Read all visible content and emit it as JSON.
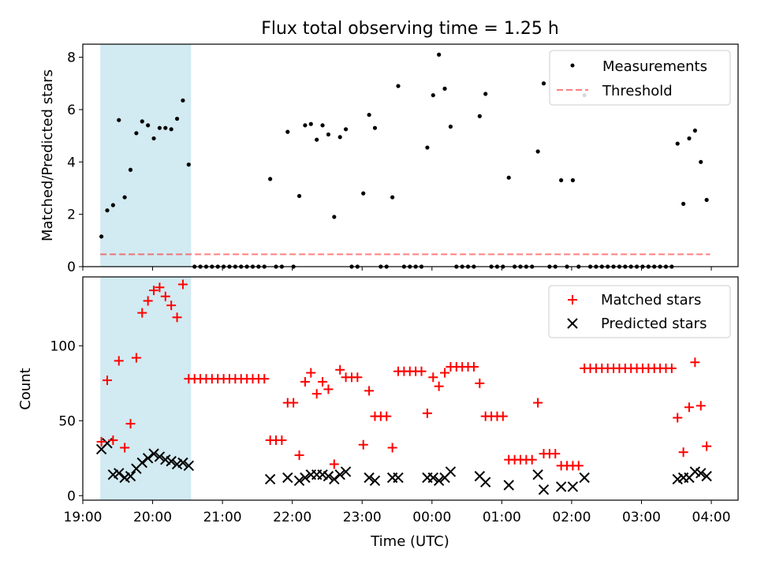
{
  "figure": {
    "title": "Flux total observing time = 1.25 h",
    "xlabel": "Time (UTC)"
  },
  "colors": {
    "shade": "#add8e6",
    "measurement": "#000000",
    "threshold": "#ff0000",
    "matched": "#ff0000",
    "predicted": "#000000"
  },
  "chart_data": [
    {
      "type": "scatter",
      "ylabel": "Matched/Predicted stars",
      "xlim": [
        "19:00",
        "04:23"
      ],
      "ylim": [
        0,
        8.5
      ],
      "yticks": [
        0,
        2,
        4,
        6,
        8
      ],
      "shaded_span": [
        "19:15",
        "20:33"
      ],
      "legend": "top-right",
      "series": [
        {
          "name": "Measurements",
          "marker": "dot",
          "x": [
            "19:16",
            "19:21",
            "19:26",
            "19:31",
            "19:36",
            "19:41",
            "19:46",
            "19:51",
            "19:56",
            "20:01",
            "20:06",
            "20:11",
            "20:16",
            "20:21",
            "20:26",
            "20:31",
            "20:36",
            "20:41",
            "20:46",
            "20:51",
            "20:56",
            "21:01",
            "21:06",
            "21:11",
            "21:16",
            "21:21",
            "21:26",
            "21:31",
            "21:36",
            "21:41",
            "21:46",
            "21:51",
            "21:56",
            "22:01",
            "22:06",
            "22:11",
            "22:16",
            "22:21",
            "22:26",
            "22:31",
            "22:36",
            "22:41",
            "22:46",
            "22:51",
            "22:56",
            "23:01",
            "23:06",
            "23:11",
            "23:16",
            "23:21",
            "23:26",
            "23:31",
            "23:36",
            "23:41",
            "23:46",
            "23:51",
            "23:56",
            "00:01",
            "00:06",
            "00:11",
            "00:16",
            "00:21",
            "00:26",
            "00:31",
            "00:36",
            "00:41",
            "00:46",
            "00:51",
            "00:56",
            "01:01",
            "01:06",
            "01:11",
            "01:16",
            "01:21",
            "01:26",
            "01:31",
            "01:36",
            "01:41",
            "01:46",
            "01:51",
            "01:56",
            "02:01",
            "02:06",
            "02:11",
            "02:16",
            "02:21",
            "02:26",
            "02:31",
            "02:36",
            "02:41",
            "02:46",
            "02:51",
            "02:56",
            "03:01",
            "03:06",
            "03:11",
            "03:16",
            "03:21",
            "03:26",
            "03:31",
            "03:36",
            "03:41",
            "03:46",
            "03:51",
            "03:56"
          ],
          "y": [
            1.15,
            2.15,
            2.35,
            5.6,
            2.65,
            3.7,
            5.1,
            5.55,
            5.4,
            4.9,
            5.3,
            5.3,
            5.25,
            5.65,
            6.35,
            3.9,
            0,
            0,
            0,
            0,
            0,
            0,
            0,
            0,
            0,
            0,
            0,
            0,
            0,
            3.35,
            0,
            0,
            5.15,
            0,
            2.7,
            5.4,
            5.45,
            4.85,
            5.4,
            5.05,
            1.9,
            4.95,
            5.25,
            0,
            0,
            2.8,
            5.8,
            5.3,
            0,
            0,
            2.65,
            6.9,
            0,
            0,
            0,
            0,
            4.55,
            6.55,
            8.1,
            6.8,
            5.35,
            0,
            0,
            0,
            0,
            5.75,
            6.6,
            0,
            0,
            0,
            3.4,
            0,
            0,
            0,
            0,
            4.4,
            7.0,
            0,
            0,
            3.3,
            0,
            3.3,
            0,
            6.55,
            0,
            0,
            0,
            0,
            0,
            0,
            0,
            0,
            0,
            0,
            0,
            0,
            0,
            0,
            0,
            4.7,
            2.4,
            4.9,
            5.2,
            4.0,
            2.55
          ]
        },
        {
          "name": "Threshold",
          "style": "dashed",
          "x": [
            "19:15",
            "03:59"
          ],
          "y": [
            0.47,
            0.47
          ]
        }
      ]
    },
    {
      "type": "scatter",
      "ylabel": "Count",
      "xlim": [
        "19:00",
        "04:23"
      ],
      "ylim": [
        -3,
        146
      ],
      "yticks": [
        0,
        50,
        100
      ],
      "xticks": [
        "19:00",
        "20:00",
        "21:00",
        "22:00",
        "23:00",
        "00:00",
        "01:00",
        "02:00",
        "03:00",
        "04:00"
      ],
      "shaded_span": [
        "19:15",
        "20:33"
      ],
      "legend": "top-right",
      "series": [
        {
          "name": "Matched stars",
          "marker": "plus",
          "x": [
            "19:16",
            "19:21",
            "19:26",
            "19:31",
            "19:36",
            "19:41",
            "19:46",
            "19:51",
            "19:56",
            "20:01",
            "20:06",
            "20:11",
            "20:16",
            "20:21",
            "20:26",
            "20:31",
            "20:36",
            "20:41",
            "20:46",
            "20:51",
            "20:56",
            "21:01",
            "21:06",
            "21:11",
            "21:16",
            "21:21",
            "21:26",
            "21:31",
            "21:36",
            "21:41",
            "21:46",
            "21:51",
            "21:56",
            "22:01",
            "22:06",
            "22:11",
            "22:16",
            "22:21",
            "22:26",
            "22:31",
            "22:36",
            "22:41",
            "22:46",
            "22:51",
            "22:56",
            "23:01",
            "23:06",
            "23:11",
            "23:16",
            "23:21",
            "23:26",
            "23:31",
            "23:36",
            "23:41",
            "23:46",
            "23:51",
            "23:56",
            "00:01",
            "00:06",
            "00:11",
            "00:16",
            "00:21",
            "00:26",
            "00:31",
            "00:36",
            "00:41",
            "00:46",
            "00:51",
            "00:56",
            "01:01",
            "01:06",
            "01:11",
            "01:16",
            "01:21",
            "01:26",
            "01:31",
            "01:36",
            "01:41",
            "01:46",
            "01:51",
            "01:56",
            "02:01",
            "02:06",
            "02:11",
            "02:16",
            "02:21",
            "02:26",
            "02:31",
            "02:36",
            "02:41",
            "02:46",
            "02:51",
            "02:56",
            "03:01",
            "03:06",
            "03:11",
            "03:16",
            "03:21",
            "03:26",
            "03:31",
            "03:36",
            "03:41",
            "03:46",
            "03:51",
            "03:56"
          ],
          "y": [
            36,
            77,
            37,
            90,
            32,
            48,
            92,
            122,
            130,
            137,
            139,
            133,
            127,
            119,
            141,
            78,
            78,
            78,
            78,
            78,
            78,
            78,
            78,
            78,
            78,
            78,
            78,
            78,
            78,
            37,
            37,
            37,
            62,
            62,
            27,
            76,
            82,
            68,
            76,
            71,
            21,
            84,
            79,
            79,
            79,
            34,
            70,
            53,
            53,
            53,
            32,
            83,
            83,
            83,
            83,
            83,
            55,
            79,
            73,
            82,
            86,
            86,
            86,
            86,
            86,
            75,
            53,
            53,
            53,
            53,
            24,
            24,
            24,
            24,
            24,
            62,
            28,
            28,
            28,
            20,
            20,
            20,
            20,
            85,
            85,
            85,
            85,
            85,
            85,
            85,
            85,
            85,
            85,
            85,
            85,
            85,
            85,
            85,
            85,
            52,
            29,
            59,
            89,
            60,
            33
          ]
        },
        {
          "name": "Predicted stars",
          "marker": "x",
          "x": [
            "19:16",
            "19:21",
            "19:26",
            "19:31",
            "19:36",
            "19:41",
            "19:46",
            "19:51",
            "19:56",
            "20:01",
            "20:06",
            "20:11",
            "20:16",
            "20:21",
            "20:26",
            "20:31",
            "21:41",
            "21:56",
            "22:06",
            "22:11",
            "22:16",
            "22:21",
            "22:26",
            "22:31",
            "22:36",
            "22:41",
            "22:46",
            "23:06",
            "23:11",
            "23:26",
            "23:31",
            "23:56",
            "00:01",
            "00:06",
            "00:11",
            "00:16",
            "00:41",
            "00:46",
            "01:06",
            "01:31",
            "01:36",
            "01:51",
            "02:01",
            "02:11",
            "03:31",
            "03:36",
            "03:41",
            "03:46",
            "03:51",
            "03:56"
          ],
          "y": [
            31,
            35,
            14,
            15,
            12,
            13,
            18,
            22,
            25,
            28,
            26,
            24,
            23,
            21,
            22,
            20,
            11,
            12,
            10,
            12,
            14,
            14,
            14,
            13,
            11,
            14,
            16,
            12,
            10,
            12,
            12,
            12,
            12,
            10,
            12,
            16,
            13,
            9,
            7,
            14,
            4,
            6,
            6,
            12,
            11,
            12,
            12,
            16,
            15,
            13
          ]
        }
      ]
    }
  ]
}
